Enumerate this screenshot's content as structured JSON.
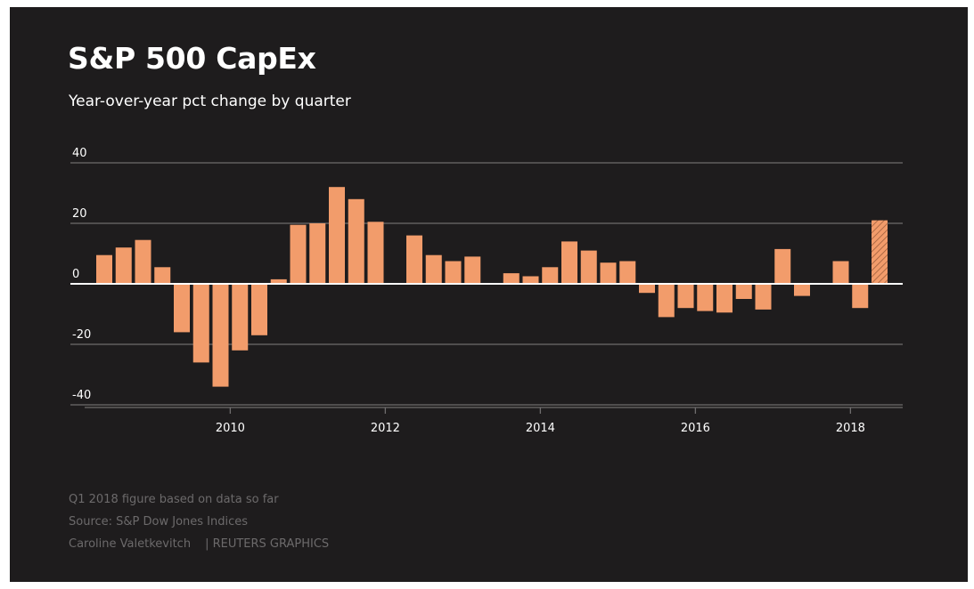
{
  "header": {
    "title": "S&P 500 CapEx",
    "subtitle": "Year-over-year pct change by quarter"
  },
  "footer": {
    "note": "Q1 2018 figure based on data so far",
    "source": "Source: S&P Dow Jones Indices",
    "author": "Caroline Valetkevitch",
    "agency": "| REUTERS GRAPHICS"
  },
  "colors": {
    "background": "#1e1c1d",
    "bar": "#f29c6b",
    "grid": "#6e6c6d",
    "zero_line": "#ffffff"
  },
  "chart_data": {
    "type": "bar",
    "title": "S&P 500 CapEx",
    "subtitle": "Year-over-year pct change by quarter",
    "xlabel": "",
    "ylabel": "",
    "ylim": [
      -40,
      40
    ],
    "yticks": [
      40,
      20,
      0,
      -20,
      -40
    ],
    "xticks": [
      "2010",
      "2012",
      "2014",
      "2016",
      "2018"
    ],
    "xlim": [
      "2008 Q1",
      "2018 Q2"
    ],
    "grid": "horizontal",
    "legend": "none",
    "categories": [
      "2008 Q2",
      "2008 Q3",
      "2008 Q4",
      "2009 Q1",
      "2009 Q2",
      "2009 Q3",
      "2009 Q4",
      "2010 Q1",
      "2010 Q2",
      "2010 Q3",
      "2010 Q4",
      "2011 Q1",
      "2011 Q2",
      "2011 Q3",
      "2011 Q4",
      "2012 Q1",
      "2012 Q2",
      "2012 Q3",
      "2012 Q4",
      "2013 Q1",
      "2013 Q2",
      "2013 Q3",
      "2013 Q4",
      "2014 Q1",
      "2014 Q2",
      "2014 Q3",
      "2014 Q4",
      "2015 Q1",
      "2015 Q2",
      "2015 Q3",
      "2015 Q4",
      "2016 Q1",
      "2016 Q2",
      "2016 Q3",
      "2016 Q4",
      "2017 Q1",
      "2017 Q2",
      "2017 Q3",
      "2017 Q4",
      "2018 Q1",
      "2018 Q2"
    ],
    "values": [
      9.5,
      12,
      14.5,
      5.5,
      -16,
      -26,
      -34,
      -22,
      -17,
      1.5,
      19.5,
      20,
      32,
      28,
      20.5,
      null,
      16,
      9.5,
      7.5,
      9,
      null,
      3.5,
      2.5,
      5.5,
      14,
      11,
      7,
      7.5,
      -3,
      -11,
      -8,
      -9,
      -9.5,
      -5,
      -8.5,
      11.5,
      -4,
      null,
      7.5,
      -8,
      21
    ],
    "preliminary": [
      false,
      false,
      false,
      false,
      false,
      false,
      false,
      false,
      false,
      false,
      false,
      false,
      false,
      false,
      false,
      false,
      false,
      false,
      false,
      false,
      false,
      false,
      false,
      false,
      false,
      false,
      false,
      false,
      false,
      false,
      false,
      false,
      false,
      false,
      false,
      false,
      false,
      false,
      false,
      false,
      true
    ],
    "preliminary_note": "Q1 2018 figure based on data so far"
  }
}
